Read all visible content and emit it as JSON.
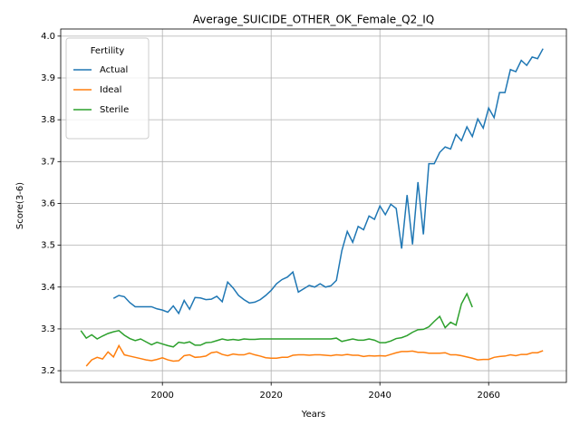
{
  "chart_data": {
    "type": "line",
    "title": "Average_SUICIDE_OTHER_OK_Female_Q2_IQ",
    "xlabel": "Years",
    "ylabel": "Score(3-6)",
    "x": [
      1985,
      1986,
      1987,
      1988,
      1989,
      1990,
      1991,
      1992,
      1993,
      1994,
      1995,
      1996,
      1997,
      1998,
      1999,
      2000,
      2001,
      2002,
      2003,
      2004,
      2005,
      2006,
      2007,
      2008,
      2009,
      2010,
      2011,
      2012,
      2013,
      2014,
      2015,
      2016,
      2017,
      2018,
      2019,
      2020,
      2021,
      2022,
      2023,
      2024,
      2025,
      2026,
      2027,
      2028,
      2029,
      2030,
      2031,
      2032,
      2033,
      2034,
      2035,
      2036,
      2037,
      2038,
      2039,
      2040,
      2041,
      2042,
      2043,
      2044,
      2045,
      2046,
      2047,
      2048,
      2049,
      2050,
      2051,
      2052,
      2053,
      2054,
      2055,
      2056,
      2057,
      2058,
      2059,
      2060,
      2061,
      2062,
      2063,
      2064,
      2065,
      2066,
      2067,
      2068,
      2069,
      2070
    ],
    "series": [
      {
        "name": "Actual",
        "color": "#1f77b4",
        "values": [
          null,
          null,
          null,
          null,
          null,
          null,
          3.373,
          3.38,
          3.377,
          3.363,
          3.353,
          3.353,
          3.353,
          3.353,
          3.348,
          3.345,
          3.34,
          3.355,
          3.337,
          3.368,
          3.347,
          3.375,
          3.374,
          3.37,
          3.371,
          3.378,
          3.365,
          3.412,
          3.398,
          3.38,
          3.37,
          3.362,
          3.364,
          3.37,
          3.38,
          3.392,
          3.408,
          3.418,
          3.424,
          3.436,
          3.388,
          3.396,
          3.404,
          3.4,
          3.408,
          3.4,
          3.403,
          3.416,
          3.487,
          3.533,
          3.507,
          3.545,
          3.537,
          3.57,
          3.562,
          3.594,
          3.573,
          3.598,
          3.588,
          3.492,
          3.62,
          3.502,
          3.651,
          3.526,
          3.695,
          3.695,
          3.722,
          3.735,
          3.73,
          3.765,
          3.75,
          3.783,
          3.76,
          3.802,
          3.78,
          3.828,
          3.805,
          3.865,
          3.865,
          3.92,
          3.915,
          3.942,
          3.93,
          3.95,
          3.946,
          3.97
        ]
      },
      {
        "name": "Ideal",
        "color": "#ff7f0e",
        "values": [
          null,
          3.211,
          3.226,
          3.232,
          3.228,
          3.245,
          3.233,
          3.26,
          3.238,
          3.235,
          3.232,
          3.229,
          3.226,
          3.224,
          3.227,
          3.231,
          3.226,
          3.223,
          3.224,
          3.236,
          3.238,
          3.232,
          3.233,
          3.235,
          3.243,
          3.245,
          3.239,
          3.236,
          3.24,
          3.238,
          3.238,
          3.242,
          3.238,
          3.235,
          3.231,
          3.23,
          3.23,
          3.232,
          3.232,
          3.237,
          3.238,
          3.238,
          3.237,
          3.238,
          3.238,
          3.237,
          3.236,
          3.238,
          3.237,
          3.239,
          3.237,
          3.237,
          3.234,
          3.236,
          3.235,
          3.236,
          3.235,
          3.239,
          3.243,
          3.246,
          3.246,
          3.247,
          3.244,
          3.244,
          3.242,
          3.242,
          3.242,
          3.243,
          3.238,
          3.238,
          3.236,
          3.233,
          3.23,
          3.226,
          3.227,
          3.227,
          3.232,
          3.234,
          3.235,
          3.238,
          3.236,
          3.239,
          3.239,
          3.243,
          3.243,
          3.248
        ]
      },
      {
        "name": "Sterile",
        "color": "#2ca02c",
        "values": [
          3.296,
          3.278,
          3.286,
          3.276,
          3.283,
          3.289,
          3.293,
          3.296,
          3.285,
          3.277,
          3.272,
          3.276,
          3.269,
          3.262,
          3.268,
          3.264,
          3.26,
          3.257,
          3.268,
          3.266,
          3.269,
          3.261,
          3.261,
          3.267,
          3.268,
          3.272,
          3.276,
          3.273,
          3.275,
          3.273,
          3.276,
          3.275,
          3.275,
          3.276,
          3.276,
          3.276,
          3.276,
          3.276,
          3.276,
          3.276,
          3.276,
          3.276,
          3.276,
          3.276,
          3.276,
          3.276,
          3.276,
          3.278,
          3.27,
          3.273,
          3.276,
          3.273,
          3.273,
          3.276,
          3.273,
          3.267,
          3.267,
          3.271,
          3.277,
          3.279,
          3.284,
          3.292,
          3.298,
          3.299,
          3.305,
          3.318,
          3.33,
          3.303,
          3.316,
          3.309,
          3.36,
          3.384,
          3.352,
          null,
          null,
          null,
          null,
          null,
          null,
          null,
          null,
          null,
          null,
          null,
          null,
          null
        ]
      }
    ],
    "legend_title": "Fertility",
    "legend": "upper left",
    "grid": true,
    "xlim": [
      1981.3,
      2074.3
    ],
    "xticks": [
      2000,
      2020,
      2040,
      2060
    ],
    "ylim": [
      3.172,
      4.017
    ],
    "yticks": [
      3.2,
      3.3,
      3.4,
      3.5,
      3.6,
      3.7,
      3.8,
      3.9,
      {
        "value": 4,
        "label": "4.0"
      }
    ]
  }
}
